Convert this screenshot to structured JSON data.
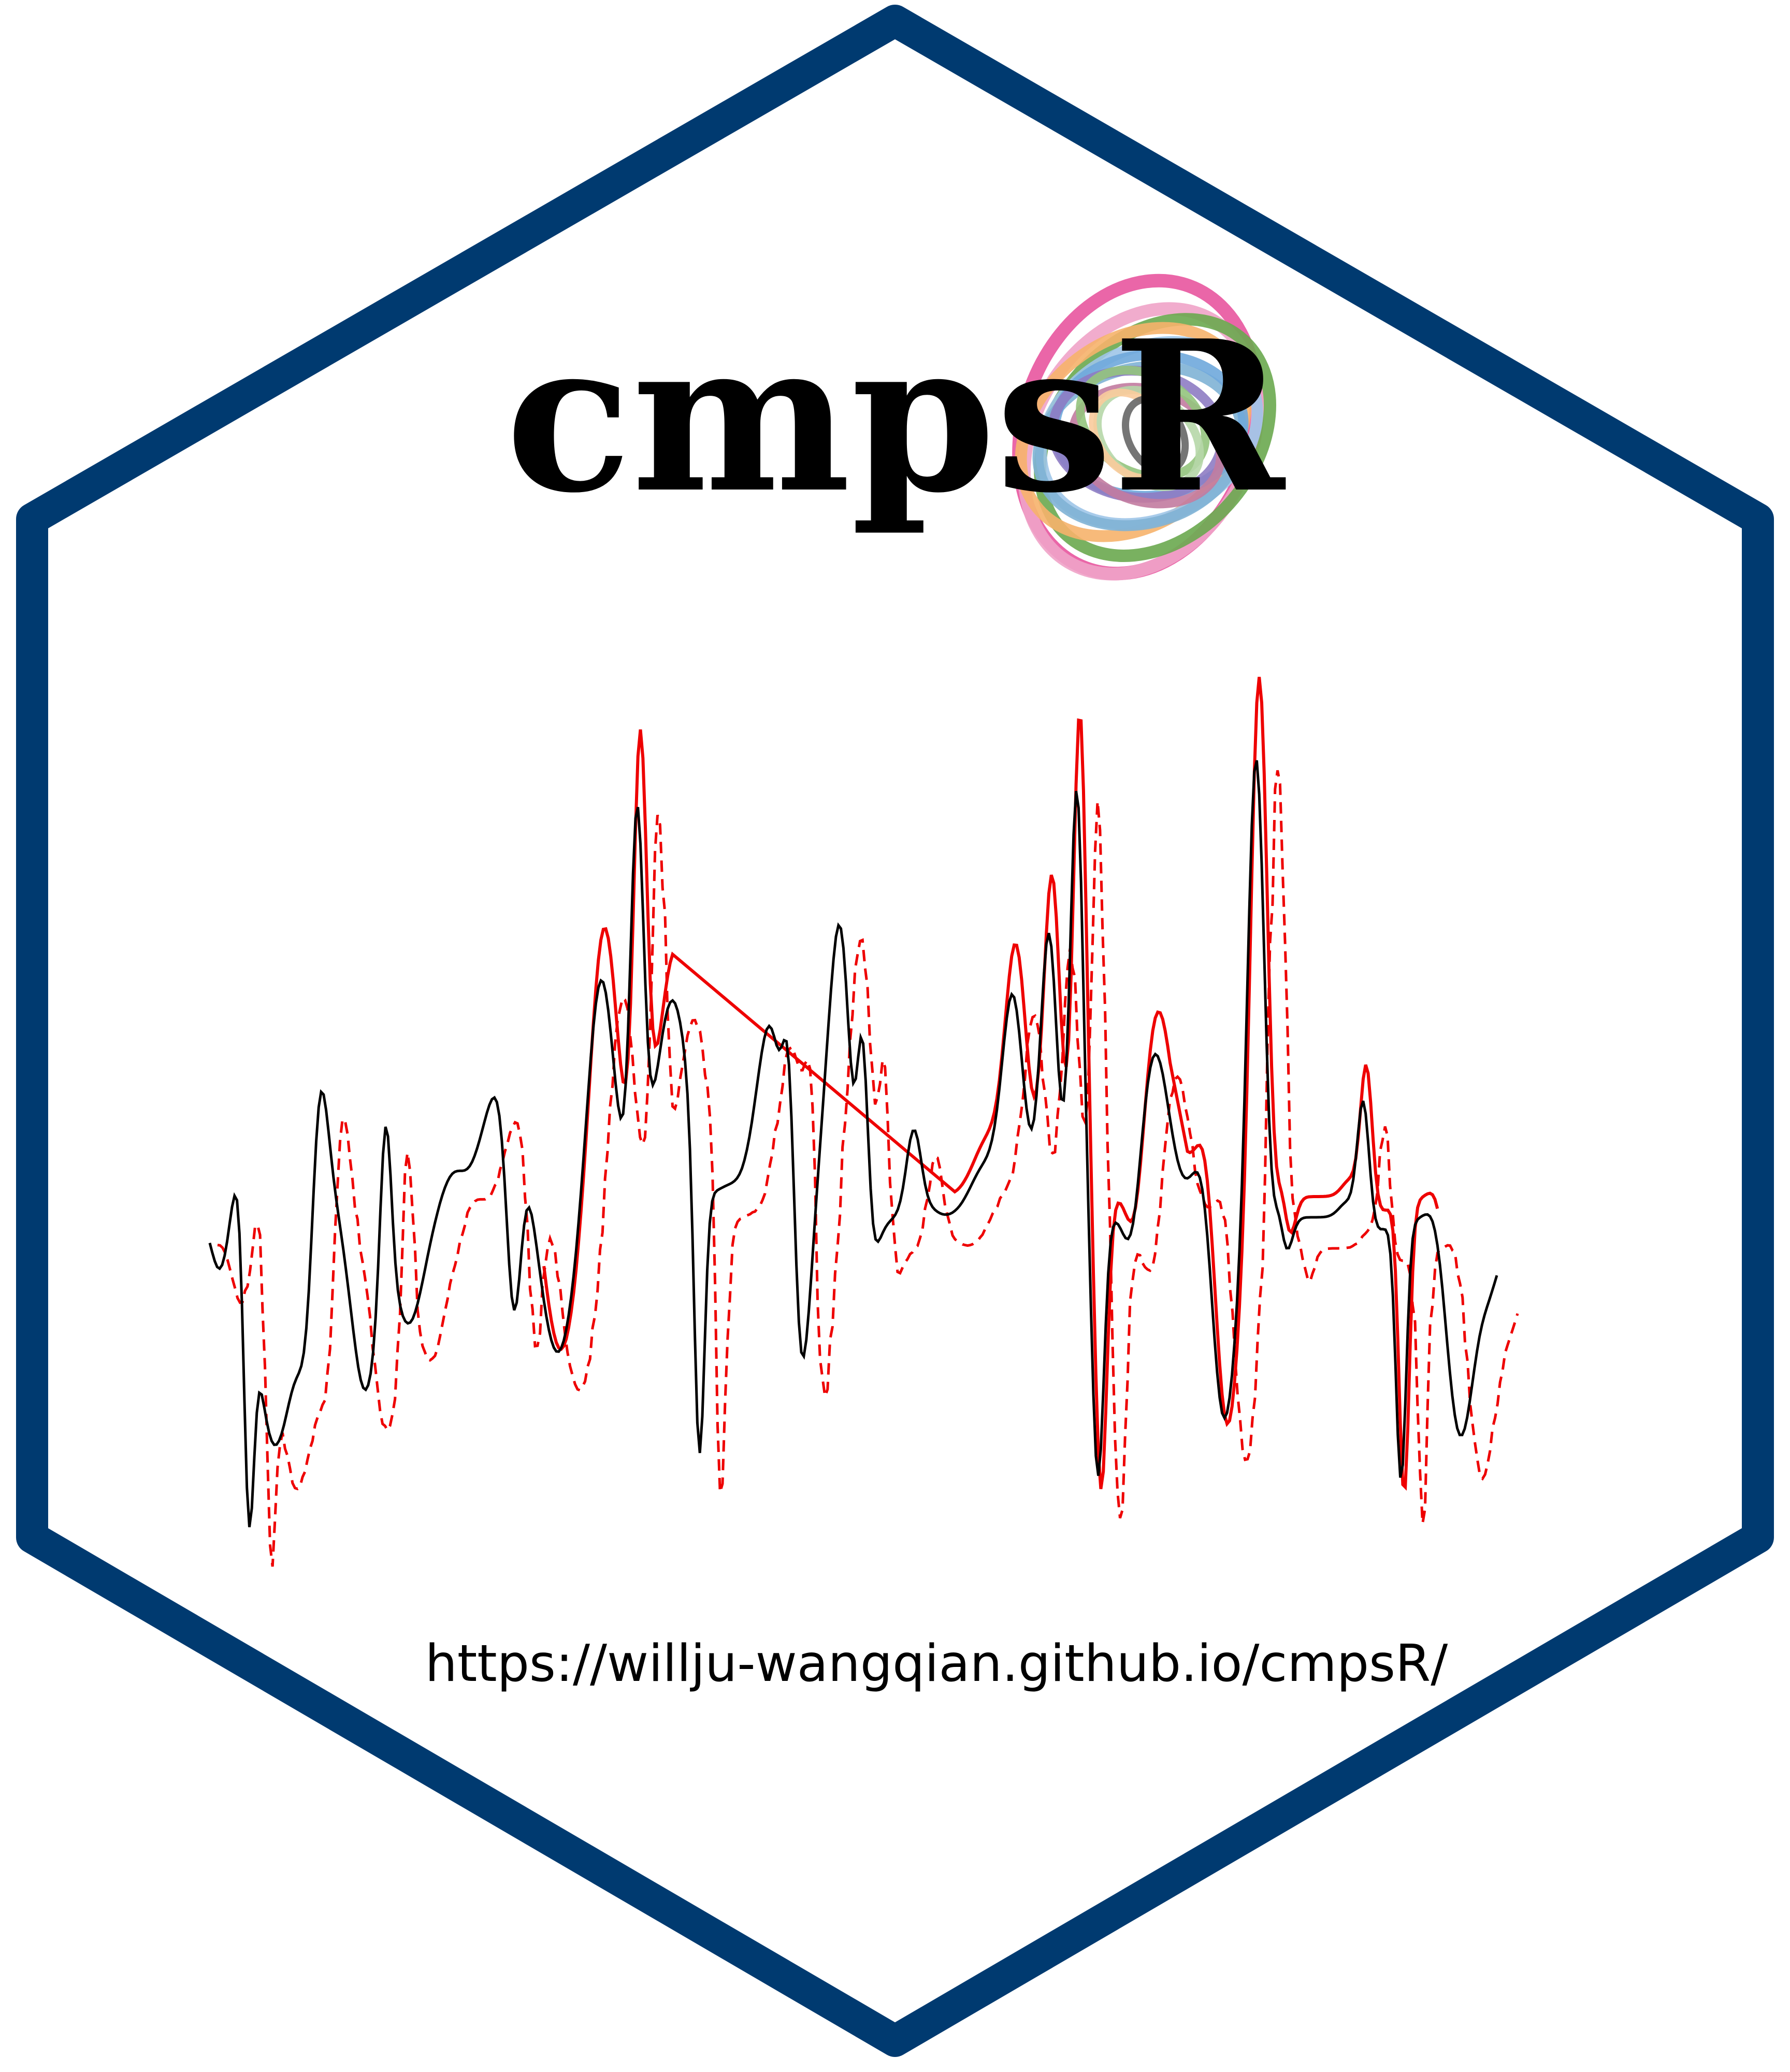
{
  "sticker": {
    "title": "cmpsR",
    "url": "https://willju-wangqian.github.io/cmpsR/",
    "border_color": "#003a70",
    "background_color": "#ffffff"
  },
  "logo": {
    "icon": "rainbow-spiral-icon",
    "ring_colors": [
      "#e8559f",
      "#f0a3c8",
      "#6aa84f",
      "#f6b26b",
      "#9fc5e8",
      "#7fb3d5",
      "#6fa8dc",
      "#8e7cc3",
      "#c27ba0",
      "#93c47d",
      "#b6d7a8",
      "#f9cb9c",
      "#666666"
    ]
  },
  "signal_plot": {
    "icon": "signal-comparison-icon",
    "series_colors": {
      "reference": "#000000",
      "matched": "#ee0000",
      "unmatched": "#ee0000"
    }
  }
}
